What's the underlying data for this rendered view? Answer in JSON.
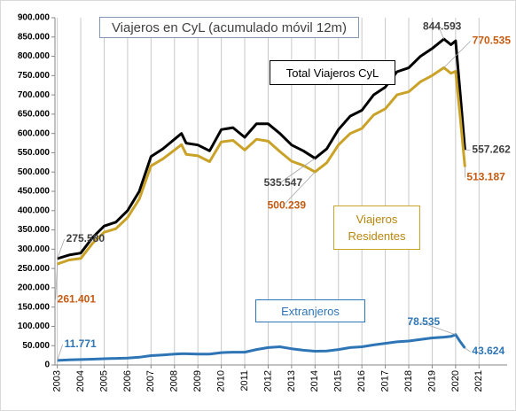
{
  "chart_data": {
    "type": "line",
    "title": "Viajeros en CyL (acumulado móvil 12m)",
    "x": [
      2003,
      2003.5,
      2004,
      2004.5,
      2005,
      2005.5,
      2006,
      2006.5,
      2007,
      2007.5,
      2008,
      2008.3,
      2008.5,
      2009,
      2009.5,
      2010,
      2010.5,
      2011,
      2011.5,
      2012,
      2012.5,
      2013,
      2013.5,
      2014,
      2014.5,
      2015,
      2015.5,
      2016,
      2016.5,
      2017,
      2017.5,
      2018,
      2018.5,
      2019,
      2019.5,
      2019.8,
      2020,
      2020.2,
      2020.4
    ],
    "series": [
      {
        "name": "Total Viajeros CyL",
        "color": "#000000",
        "label_color": "#404040",
        "values": [
          275580,
          285000,
          290000,
          330000,
          360000,
          370000,
          400000,
          450000,
          540000,
          560000,
          585000,
          600000,
          575000,
          570000,
          555000,
          610000,
          615000,
          590000,
          625000,
          625000,
          600000,
          570000,
          555000,
          535547,
          560000,
          610000,
          645000,
          660000,
          700000,
          720000,
          760000,
          770000,
          800000,
          820000,
          844593,
          830000,
          840000,
          700000,
          557262
        ]
      },
      {
        "name": "Viajeros Residentes",
        "color": "#c9a227",
        "label_color": "#c55a11",
        "values": [
          261401,
          272000,
          276000,
          315000,
          344000,
          353000,
          382000,
          430000,
          516000,
          534000,
          557000,
          571000,
          546000,
          542000,
          527000,
          578000,
          582000,
          557000,
          585000,
          580000,
          553000,
          528000,
          517000,
          500239,
          524000,
          570000,
          600000,
          613000,
          648000,
          664000,
          700000,
          708000,
          734000,
          750000,
          770535,
          756000,
          761000,
          640000,
          513187
        ]
      },
      {
        "name": "Extranjeros",
        "color": "#2e75b6",
        "label_color": "#2e75b6",
        "values": [
          11771,
          13000,
          14000,
          15000,
          16000,
          17000,
          18000,
          20000,
          24000,
          26000,
          28000,
          29000,
          29000,
          28000,
          28000,
          32000,
          33000,
          33000,
          40000,
          45000,
          47000,
          42000,
          38000,
          35547,
          36000,
          40000,
          45000,
          47000,
          52000,
          56000,
          60000,
          62000,
          66000,
          70000,
          72000,
          74000,
          78535,
          60000,
          43624
        ]
      }
    ],
    "annotations": [
      {
        "series": 0,
        "x": 2003,
        "value": 275580,
        "label": "275.580"
      },
      {
        "series": 1,
        "x": 2003,
        "value": 261401,
        "label": "261.401"
      },
      {
        "series": 0,
        "x": 2019.5,
        "value": 844593,
        "label": "844.593"
      },
      {
        "series": 1,
        "x": 2019.5,
        "value": 770535,
        "label": "770.535"
      },
      {
        "series": 0,
        "x": 2020.4,
        "value": 557262,
        "label": "557.262"
      },
      {
        "series": 1,
        "x": 2020.4,
        "value": 513187,
        "label": "513.187"
      },
      {
        "series": 0,
        "x": 2014,
        "value": 535547,
        "label": "535.547"
      },
      {
        "series": 1,
        "x": 2014,
        "value": 500239,
        "label": "500.239"
      },
      {
        "series": 2,
        "x": 2003,
        "value": 11771,
        "label": "11.771"
      },
      {
        "series": 2,
        "x": 2020,
        "value": 78535,
        "label": "78.535"
      },
      {
        "series": 2,
        "x": 2020.4,
        "value": 43624,
        "label": "43.624"
      }
    ],
    "xlim": [
      2002.9,
      2022.2
    ],
    "xticks": [
      2003,
      2004,
      2005,
      2006,
      2007,
      2008,
      2009,
      2010,
      2011,
      2012,
      2013,
      2014,
      2015,
      2016,
      2017,
      2018,
      2019,
      2020,
      2021
    ],
    "ylim": [
      0,
      900000
    ],
    "yticks": [
      0,
      {
        "value": 50000,
        "label": "50.000"
      },
      {
        "value": 100000,
        "label": "100.000"
      },
      {
        "value": 150000,
        "label": "150.000"
      },
      {
        "value": 200000,
        "label": "200.000"
      },
      {
        "value": 250000,
        "label": "250.000"
      },
      {
        "value": 300000,
        "label": "300.000"
      },
      {
        "value": 350000,
        "label": "350.000"
      },
      {
        "value": 400000,
        "label": "400.000"
      },
      {
        "value": 450000,
        "label": "450.000"
      },
      {
        "value": 500000,
        "label": "500.000"
      },
      {
        "value": 550000,
        "label": "550.000"
      },
      {
        "value": 600000,
        "label": "600.000"
      },
      {
        "value": 650000,
        "label": "650.000"
      },
      {
        "value": 700000,
        "label": "700.000"
      },
      {
        "value": 750000,
        "label": "750.000"
      },
      {
        "value": 800000,
        "label": "800.000"
      },
      {
        "value": 850000,
        "label": "850.000"
      },
      {
        "value": 900000,
        "label": "900.000"
      }
    ],
    "grid": "x"
  }
}
